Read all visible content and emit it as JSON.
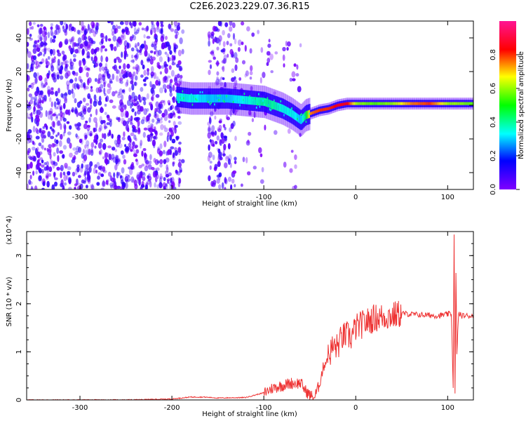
{
  "title": "C2E6.2023.229.07.36.R15",
  "chart_data": [
    {
      "type": "heatmap",
      "title": "C2E6.2023.229.07.36.R15",
      "xlabel": "Height of straight line (km)",
      "ylabel": "Frequency (Hz)",
      "xlim": [
        -358,
        128
      ],
      "ylim": [
        -50,
        50
      ],
      "x_ticks": [
        -300,
        -200,
        -100,
        0,
        100
      ],
      "y_ticks": [
        -40,
        -20,
        0,
        20,
        40
      ],
      "colorbar": {
        "label": "Normalized spectral amplitude",
        "range": [
          0,
          1
        ],
        "ticks": [
          0.0,
          0.2,
          0.4,
          0.6,
          0.8
        ],
        "colormap": [
          "#7f00ff",
          "#0000ff",
          "#00ffff",
          "#00ff00",
          "#ffff00",
          "#ff0000",
          "#ff1493"
        ]
      },
      "ridge": {
        "x": [
          -195,
          -180,
          -160,
          -140,
          -120,
          -100,
          -90,
          -80,
          -70,
          -60,
          -55,
          -50,
          -40,
          -30,
          -20,
          -10,
          0,
          20,
          40,
          60,
          80,
          100,
          110,
          128
        ],
        "y": [
          5,
          4,
          4,
          4,
          3,
          2,
          0,
          -2,
          -5,
          -9,
          -6,
          -5,
          -3,
          -2,
          0,
          1,
          1,
          1,
          1,
          1,
          1,
          1,
          1,
          1
        ],
        "amplitude": [
          0.35,
          0.35,
          0.3,
          0.3,
          0.35,
          0.4,
          0.4,
          0.35,
          0.35,
          0.3,
          0.45,
          0.75,
          0.8,
          0.8,
          0.85,
          0.85,
          0.6,
          0.55,
          0.6,
          0.75,
          0.8,
          0.6,
          0.6,
          0.55
        ]
      },
      "grid": false
    },
    {
      "type": "line",
      "xlabel": "Height of straight line (km)",
      "ylabel": "SNR (10 * v/v)",
      "y_multiplier": "(x10^4)",
      "xlim": [
        -358,
        128
      ],
      "ylim": [
        0,
        3.5
      ],
      "x_ticks": [
        -300,
        -200,
        -100,
        0,
        100
      ],
      "y_ticks": [
        0,
        1,
        2,
        3
      ],
      "series": [
        {
          "color": "#ee3333",
          "x": [
            -358,
            -250,
            -200,
            -180,
            -165,
            -150,
            -120,
            -100,
            -90,
            -80,
            -70,
            -60,
            -55,
            -50,
            -45,
            -40,
            -35,
            -30,
            -25,
            -20,
            -15,
            -10,
            -5,
            0,
            10,
            20,
            30,
            40,
            50,
            60,
            70,
            80,
            90,
            100,
            104,
            106,
            107,
            108,
            109,
            110,
            112,
            115,
            128
          ],
          "y": [
            0.0,
            0.0,
            0.02,
            0.06,
            0.06,
            0.04,
            0.05,
            0.15,
            0.25,
            0.3,
            0.35,
            0.35,
            0.2,
            0.1,
            0.05,
            0.3,
            0.7,
            0.9,
            1.1,
            1.1,
            1.3,
            1.35,
            1.3,
            1.5,
            1.6,
            1.7,
            1.73,
            1.75,
            1.8,
            1.78,
            1.77,
            1.76,
            1.75,
            1.78,
            1.8,
            0.3,
            3.4,
            0.1,
            2.6,
            1.0,
            1.8,
            1.75,
            1.75
          ]
        }
      ],
      "grid": false
    }
  ]
}
